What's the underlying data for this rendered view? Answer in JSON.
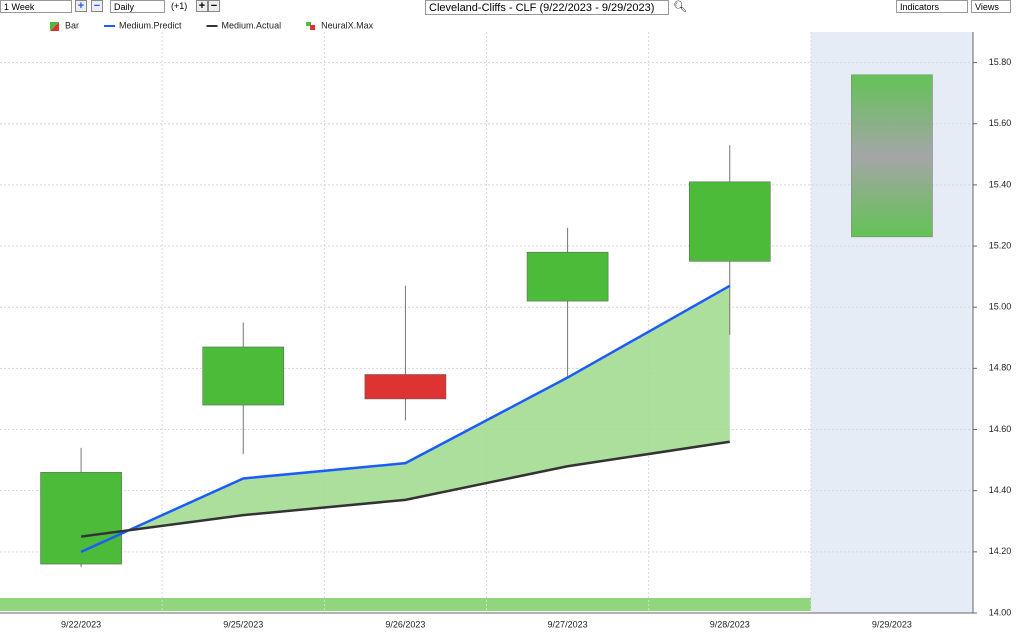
{
  "toolbar": {
    "period": "1 Week",
    "interval": "Daily",
    "offset": "(+1)",
    "indicators": "Indicators",
    "views": "Views"
  },
  "chart_data": {
    "type": "candlestick",
    "title": "Cleveland-Cliffs - CLF (9/22/2023 - 9/29/2023)",
    "categories": [
      "9/22/2023",
      "9/25/2023",
      "9/26/2023",
      "9/27/2023",
      "9/28/2023",
      "9/29/2023"
    ],
    "ylim": [
      14.0,
      15.9
    ],
    "yticks": [
      {
        "value": 14.0,
        "label": "14.00"
      },
      {
        "value": 14.2,
        "label": "14.20"
      },
      {
        "value": 14.4,
        "label": "14.40"
      },
      {
        "value": 14.6,
        "label": "14.60"
      },
      {
        "value": 14.8,
        "label": "14.80"
      },
      {
        "value": 15.0,
        "label": "15.00"
      },
      {
        "value": 15.2,
        "label": "15.20"
      },
      {
        "value": 15.4,
        "label": "15.40"
      },
      {
        "value": 15.6,
        "label": "15.60"
      },
      {
        "value": 15.8,
        "label": "15.80"
      }
    ],
    "grid": true,
    "up_color": "#4cbb3a",
    "down_color": "#dd3333",
    "area_color": "#a3dc91",
    "series": [
      {
        "name": "Bar",
        "kind": "candle",
        "open": [
          14.16,
          14.68,
          14.78,
          15.02,
          15.15,
          null
        ],
        "high": [
          14.54,
          14.95,
          15.07,
          15.26,
          15.53,
          null
        ],
        "low": [
          14.15,
          14.52,
          14.63,
          14.77,
          14.91,
          null
        ],
        "close": [
          14.46,
          14.87,
          14.7,
          15.18,
          15.41,
          null
        ],
        "forecast_low": [
          null,
          null,
          null,
          null,
          null,
          15.23
        ],
        "forecast_high": [
          null,
          null,
          null,
          null,
          null,
          15.76
        ]
      },
      {
        "name": "Medium.Predict",
        "kind": "line",
        "color": "#1a5cff",
        "values": [
          14.2,
          14.44,
          14.49,
          14.77,
          15.07,
          null
        ]
      },
      {
        "name": "Medium.Actual",
        "kind": "line",
        "color": "#333333",
        "values": [
          14.25,
          14.32,
          14.37,
          14.48,
          14.56,
          null
        ]
      },
      {
        "name": "NeuralX.Max",
        "kind": "legend"
      }
    ]
  }
}
